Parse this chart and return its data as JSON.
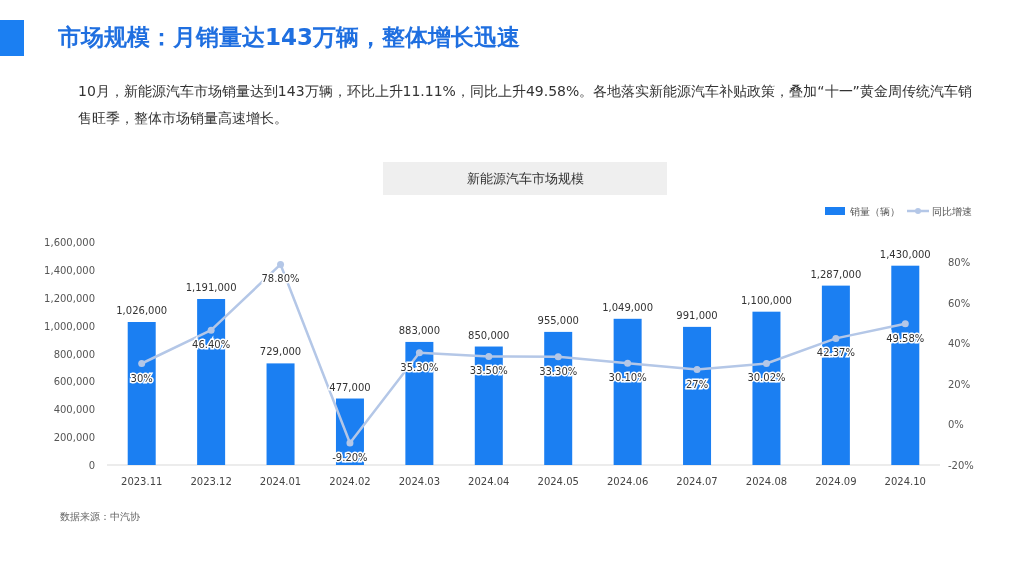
{
  "chart_data": {
    "type": "bar",
    "title": "市场规模：月销量达143万辆，整体增长迅速",
    "subtitle": "10月，新能源汽车市场销量达到143万辆，环比上升11.11%，同比上升49.58%。各地落实新能源汽车补贴政策，叠加“十一”黄金周传统汽车销售旺季，整体市场销量高速增长。",
    "annotations": [
      "新能源汽车市场规模",
      "数据来源：中汽协"
    ],
    "categories": [
      "2023.11",
      "2023.12",
      "2024.01",
      "2024.02",
      "2024.03",
      "2024.04",
      "2024.05",
      "2024.06",
      "2024.07",
      "2024.08",
      "2024.09",
      "2024.10"
    ],
    "series": [
      {
        "name": "销量（辆）",
        "color": "#1b7ff2",
        "values": [
          1026000,
          1191000,
          729000,
          477000,
          883000,
          850000,
          955000,
          1049000,
          991000,
          1100000,
          1287000,
          1430000
        ],
        "value_labels": [
          "1,026,000",
          "1,191,000",
          "729,000",
          "477,000",
          "883,000",
          "850,000",
          "955,000",
          "1,049,000",
          "991,000",
          "1,100,000",
          "1,287,000",
          "1,430,000"
        ]
      },
      {
        "name": "同比增速",
        "type": "line",
        "axis": "y2",
        "color": "#b4c7e7",
        "marker": "circle",
        "values": [
          30,
          46.4,
          78.8,
          -9.2,
          35.3,
          33.5,
          33.3,
          30.1,
          27,
          30.02,
          42.37,
          49.58
        ],
        "value_labels": [
          "30%",
          "46.40%",
          "78.80%",
          "-9.20%",
          "35.30%",
          "33.50%",
          "33.30%",
          "30.10%",
          "27%",
          "30.02%",
          "42.37%",
          "49.58%"
        ]
      }
    ],
    "ylim": [
      0,
      1600000
    ],
    "yticks": [
      0,
      {
        "value": 200000,
        "label": "200,000"
      },
      {
        "value": 400000,
        "label": "400,000"
      },
      {
        "value": 600000,
        "label": "600,000"
      },
      {
        "value": 800000,
        "label": "800,000"
      },
      {
        "value": 1000000,
        "label": "1,000,000"
      },
      {
        "value": 1200000,
        "label": "1,200,000"
      },
      {
        "value": 1400000,
        "label": "1,400,000"
      },
      {
        "value": 1600000,
        "label": "1,600,000"
      }
    ],
    "y2lim": [
      -20,
      80
    ],
    "y2ticks": [
      {
        "value": -20,
        "label": "-20%"
      },
      {
        "value": 0,
        "label": "0%"
      },
      {
        "value": 20,
        "label": "20%"
      },
      {
        "value": 40,
        "label": "40%"
      },
      {
        "value": 60,
        "label": "60%"
      },
      {
        "value": 80,
        "label": "80%"
      }
    ],
    "grid": false,
    "legend": "top right"
  }
}
